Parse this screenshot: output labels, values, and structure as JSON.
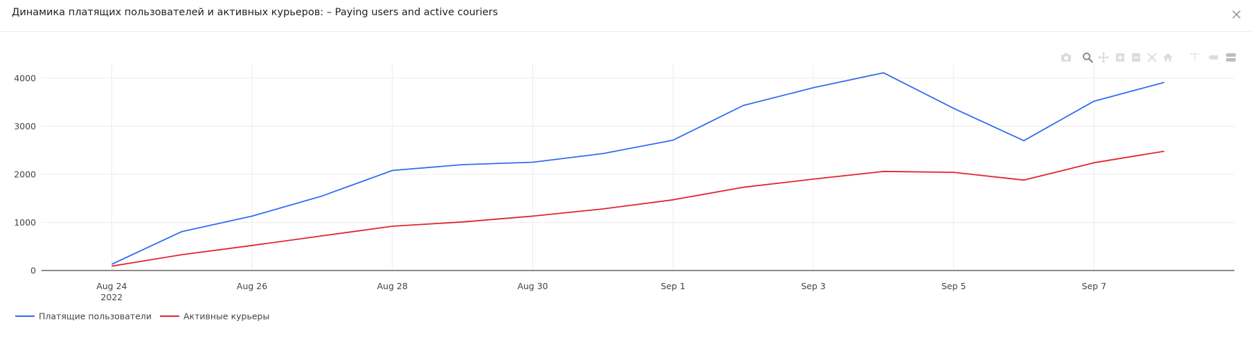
{
  "window": {
    "title": "Динамика платящих пользователей и активных курьеров: – Paying users and active couriers",
    "close_icon": "close-icon"
  },
  "modebar": {
    "icons": [
      "camera-icon",
      "zoom-icon",
      "pan-icon",
      "zoom-in-icon",
      "zoom-out-icon",
      "autoscale-icon",
      "home-icon",
      "spike-lines-icon",
      "hover-closest-icon",
      "hover-compare-icon"
    ]
  },
  "chart_data": {
    "type": "line",
    "x": [
      "2022-08-24",
      "2022-08-25",
      "2022-08-26",
      "2022-08-27",
      "2022-08-28",
      "2022-08-29",
      "2022-08-30",
      "2022-08-31",
      "2022-09-01",
      "2022-09-02",
      "2022-09-03",
      "2022-09-04",
      "2022-09-05",
      "2022-09-06",
      "2022-09-07",
      "2022-09-08"
    ],
    "x_ticks": [
      "Aug 24",
      "Aug 26",
      "Aug 28",
      "Aug 30",
      "Sep 1",
      "Sep 3",
      "Sep 5",
      "Sep 7"
    ],
    "x_tick_dates": [
      "2022-08-24",
      "2022-08-26",
      "2022-08-28",
      "2022-08-30",
      "2022-09-01",
      "2022-09-03",
      "2022-09-05",
      "2022-09-07"
    ],
    "x_year_label": "2022",
    "xlim": [
      "2022-08-23",
      "2022-09-09"
    ],
    "y_ticks": [
      0,
      1000,
      2000,
      3000,
      4000
    ],
    "y_tick_labels": [
      "0",
      "1000",
      "2000",
      "3000",
      "4000"
    ],
    "ylim": [
      0,
      4300
    ],
    "grid": true,
    "legend_position": "bottom-left",
    "series": [
      {
        "name": "Платящие пользователи",
        "color": "#2f6cf0",
        "values": [
          130,
          810,
          1130,
          1550,
          2080,
          2200,
          2250,
          2430,
          2710,
          3430,
          3800,
          4110,
          3370,
          2700,
          3520,
          3910
        ]
      },
      {
        "name": "Активные курьеры",
        "color": "#e0242b",
        "values": [
          90,
          330,
          520,
          720,
          920,
          1010,
          1130,
          1280,
          1470,
          1730,
          1900,
          2060,
          2040,
          1880,
          2240,
          2480
        ]
      }
    ]
  }
}
